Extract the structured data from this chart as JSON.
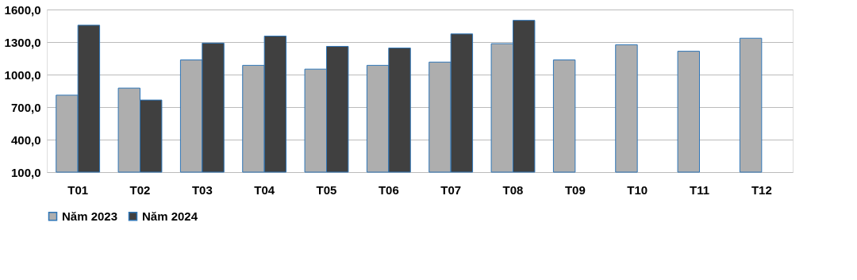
{
  "chart_data": {
    "type": "bar",
    "categories": [
      "T01",
      "T02",
      "T03",
      "T04",
      "T05",
      "T06",
      "T07",
      "T08",
      "T09",
      "T10",
      "T11",
      "T12"
    ],
    "series": [
      {
        "name": "Năm 2023",
        "color": "#aeaeae",
        "values": [
          810,
          875,
          1135,
          1085,
          1050,
          1085,
          1115,
          1285,
          1135,
          1275,
          1215,
          1335
        ]
      },
      {
        "name": "Năm 2024",
        "color": "#404040",
        "values": [
          1455,
          765,
          1290,
          1355,
          1260,
          1245,
          1375,
          1500,
          null,
          null,
          null,
          null
        ]
      }
    ],
    "ylim": [
      100,
      1600
    ],
    "yticks": [
      {
        "value": 100,
        "label": "100,0"
      },
      {
        "value": 400,
        "label": "400,0"
      },
      {
        "value": 700,
        "label": "700,0"
      },
      {
        "value": 1000,
        "label": "1000,0"
      },
      {
        "value": 1300,
        "label": "1300,0"
      },
      {
        "value": 1600,
        "label": "1600,0"
      }
    ],
    "grid": "y",
    "legend": "bottom"
  }
}
